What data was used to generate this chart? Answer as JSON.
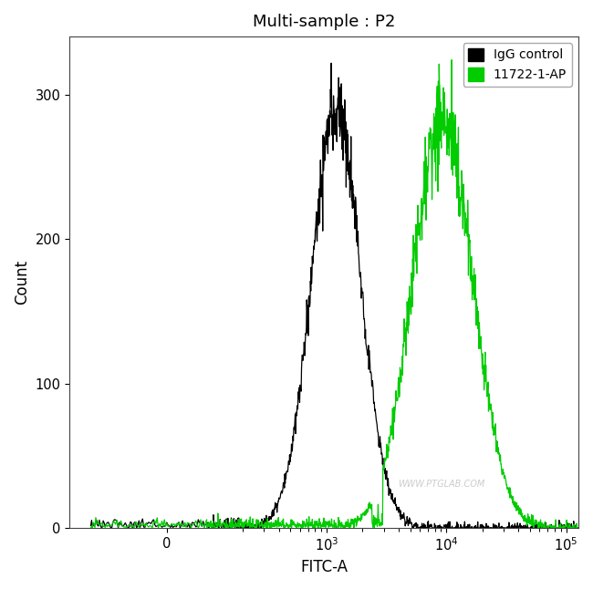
{
  "title": "Multi-sample : P2",
  "xlabel": "FITC-A",
  "ylabel": "Count",
  "ylim": [
    0,
    340
  ],
  "yticks": [
    0,
    100,
    200,
    300
  ],
  "legend_labels": [
    "IgG control",
    "11722-1-AP"
  ],
  "legend_colors": [
    "#000000",
    "#00cc00"
  ],
  "black_peak_log": 3.08,
  "green_peak_log": 3.97,
  "black_peak_count": 290,
  "green_peak_count": 285,
  "black_sigma_log": 0.17,
  "green_sigma_log": 0.21,
  "linthresh": 100,
  "background_color": "#ffffff",
  "watermark": "WWW.PTGLAB.COM",
  "watermark_color": "#c0c0c0"
}
